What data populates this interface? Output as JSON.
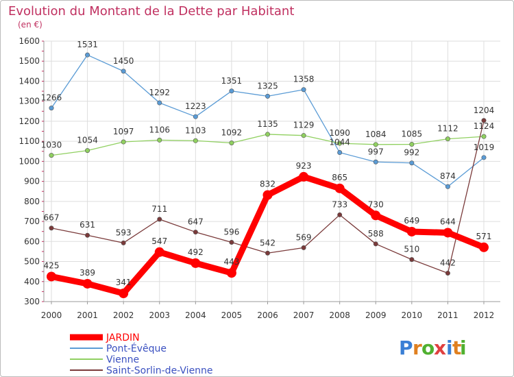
{
  "chart_data": {
    "type": "line",
    "title": "Evolution du Montant de la Dette par Habitant",
    "subtitle": "(en €)",
    "xlabel": "",
    "ylabel": "",
    "x": [
      "2000",
      "2001",
      "2002",
      "2003",
      "2004",
      "2005",
      "2006",
      "2007",
      "2008",
      "2009",
      "2010",
      "2011",
      "2012"
    ],
    "ylim": [
      300,
      1600
    ],
    "yticks": [
      300,
      400,
      500,
      600,
      700,
      800,
      900,
      1000,
      1100,
      1200,
      1300,
      1400,
      1500,
      1600
    ],
    "grid": true,
    "legend_position": "bottom-left",
    "series": [
      {
        "name": "JARDIN",
        "color": "#ff0000",
        "values": [
          425,
          389,
          341,
          547,
          492,
          443,
          832,
          923,
          865,
          730,
          649,
          644,
          571
        ]
      },
      {
        "name": "Pont-Évêque",
        "color": "#5a9bd5",
        "values": [
          1266,
          1531,
          1450,
          1292,
          1223,
          1351,
          1325,
          1358,
          1044,
          997,
          992,
          874,
          1019
        ]
      },
      {
        "name": "Vienne",
        "color": "#90d060",
        "values": [
          1030,
          1054,
          1097,
          1106,
          1103,
          1092,
          1135,
          1129,
          1090,
          1084,
          1085,
          1112,
          1124
        ]
      },
      {
        "name": "Saint-Sorlin-de-Vienne",
        "color": "#7a3a3a",
        "values": [
          667,
          631,
          593,
          711,
          647,
          596,
          542,
          569,
          733,
          588,
          510,
          442,
          1204
        ]
      }
    ]
  },
  "logo": {
    "text": "Proxiti",
    "letters": [
      "P",
      "r",
      "o",
      "x",
      "i",
      "t",
      "i"
    ],
    "colors": [
      "#3a7fd5",
      "#e08020",
      "#50b030",
      "#e04040",
      "#3a7fd5",
      "#e08020",
      "#50b030"
    ]
  }
}
